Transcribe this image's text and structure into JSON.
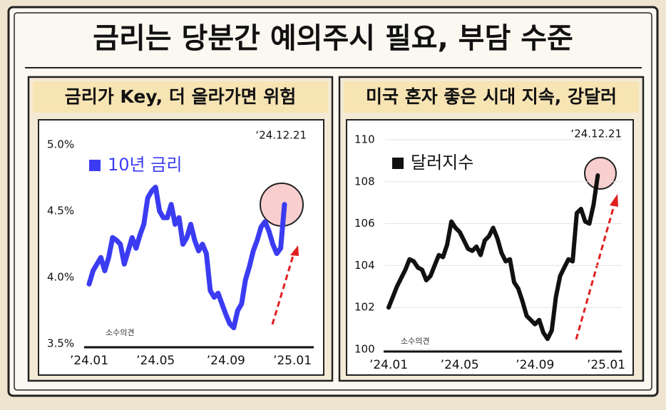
{
  "title": "금리는 당분간 예의주시 필요, 부담 수준",
  "chart_data": [
    {
      "type": "line",
      "title": "금리가 Key, 더 올라가면 위험",
      "annotations": [
        "‘24.12.21",
        "소수의견"
      ],
      "categories": [
        "’24.01",
        null,
        null,
        null,
        null,
        null,
        null,
        null,
        null,
        null,
        null,
        null,
        null,
        null,
        null,
        null,
        null,
        "’24.05",
        null,
        null,
        null,
        null,
        null,
        null,
        null,
        null,
        null,
        null,
        null,
        null,
        null,
        null,
        null,
        null,
        null,
        "’24.09",
        null,
        null,
        null,
        null,
        null,
        null,
        null,
        null,
        null,
        null,
        null,
        null,
        null,
        null,
        null,
        null,
        "’25.01"
      ],
      "series": [
        {
          "name": "10년 금리",
          "color": "#3b3cf2",
          "values": [
            3.95,
            4.05,
            4.1,
            4.15,
            4.05,
            4.15,
            4.3,
            4.28,
            4.25,
            4.1,
            4.2,
            4.3,
            4.22,
            4.32,
            4.4,
            4.6,
            4.65,
            4.68,
            4.5,
            4.45,
            4.45,
            4.55,
            4.4,
            4.45,
            4.25,
            4.3,
            4.4,
            4.28,
            4.2,
            4.25,
            4.18,
            3.9,
            3.85,
            3.88,
            3.8,
            3.72,
            3.65,
            3.62,
            3.75,
            3.8,
            3.98,
            4.08,
            4.2,
            4.28,
            4.38,
            4.42,
            4.35,
            4.25,
            4.18,
            4.22,
            4.55,
            null,
            null
          ]
        }
      ],
      "ylim": [
        3.5,
        5.0
      ],
      "yticks": [
        {
          "value": 3.5,
          "label": "3.5%"
        },
        {
          "value": 4.0,
          "label": "4.0%"
        },
        {
          "value": 4.5,
          "label": "4.5%"
        },
        {
          "value": 5.0,
          "label": "5.0%"
        }
      ],
      "grid": false
    },
    {
      "type": "line",
      "title": "미국 혼자 좋은 시대 지속, 강달러",
      "annotations": [
        "‘24.12.21",
        "소수의견"
      ],
      "categories": [
        "’24.01",
        null,
        null,
        null,
        null,
        null,
        null,
        null,
        null,
        null,
        null,
        null,
        null,
        null,
        null,
        null,
        null,
        "’24.05",
        null,
        null,
        null,
        null,
        null,
        null,
        null,
        null,
        null,
        null,
        null,
        null,
        null,
        null,
        null,
        null,
        null,
        "’24.09",
        null,
        null,
        null,
        null,
        null,
        null,
        null,
        null,
        null,
        null,
        null,
        null,
        null,
        null,
        null,
        null,
        "’25.01"
      ],
      "series": [
        {
          "name": "달러지수",
          "color": "#111111",
          "values": [
            102.0,
            102.5,
            103.0,
            103.4,
            103.8,
            104.3,
            104.2,
            103.9,
            103.8,
            103.3,
            103.5,
            104.0,
            104.5,
            104.4,
            105.0,
            106.1,
            105.8,
            105.6,
            105.2,
            104.8,
            104.7,
            104.9,
            104.5,
            105.2,
            105.4,
            105.8,
            105.3,
            104.6,
            104.2,
            104.3,
            103.2,
            102.9,
            102.3,
            101.6,
            101.4,
            101.2,
            101.4,
            100.8,
            100.5,
            100.9,
            102.5,
            103.5,
            103.9,
            104.3,
            104.2,
            106.5,
            106.7,
            106.1,
            106.0,
            106.9,
            108.3,
            null,
            null
          ]
        }
      ],
      "ylim": [
        100,
        110
      ],
      "yticks": [
        100,
        102,
        104,
        106,
        108,
        110
      ],
      "grid": true
    }
  ]
}
